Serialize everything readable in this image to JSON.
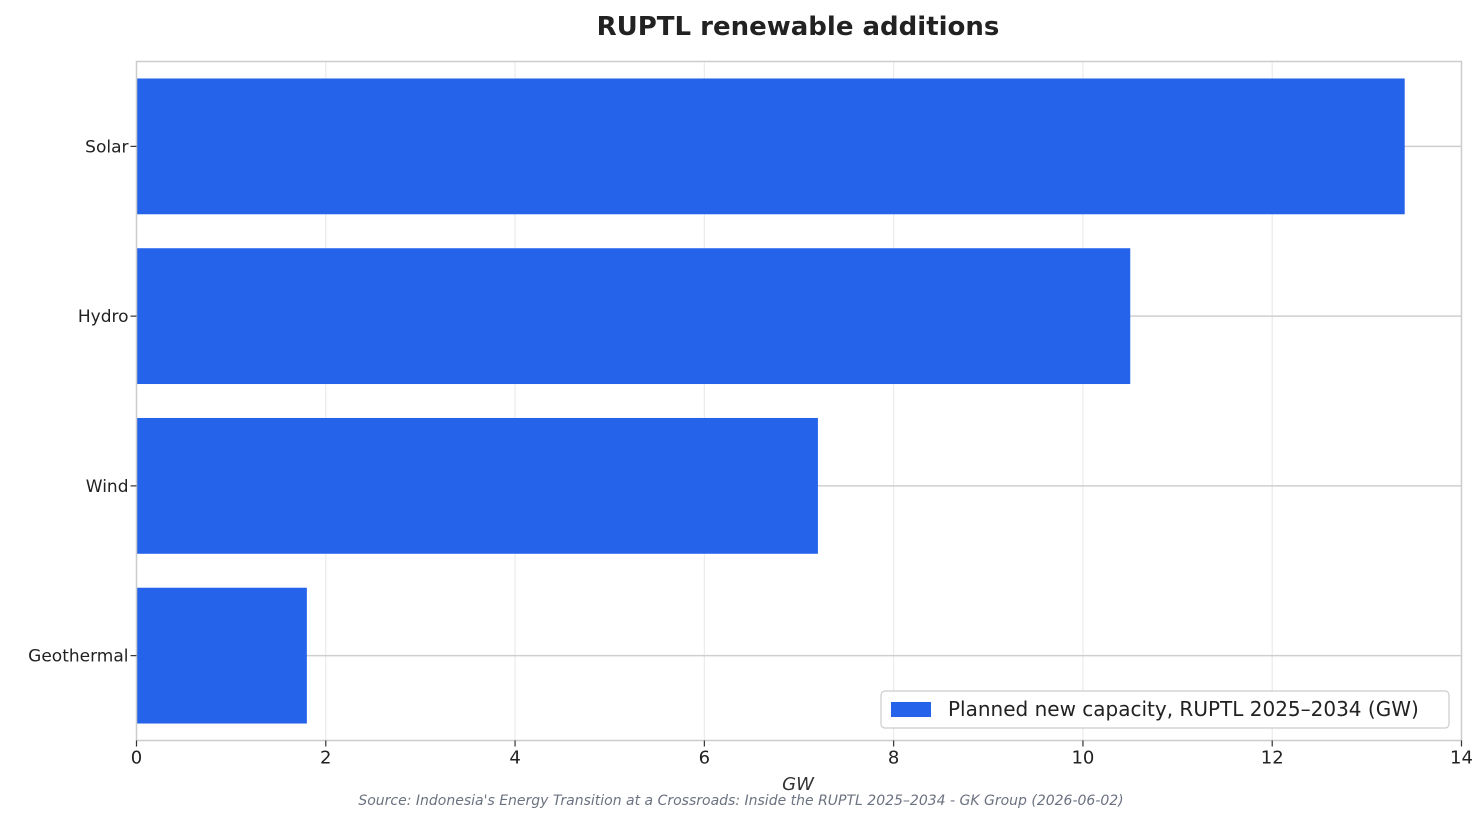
{
  "chart_data": {
    "type": "bar",
    "orientation": "horizontal",
    "title": "RUPTL renewable additions",
    "xlabel": "GW",
    "ylabel": "",
    "categories": [
      "Solar",
      "Hydro",
      "Wind",
      "Geothermal"
    ],
    "series": [
      {
        "name": "Planned new capacity, RUPTL 2025–2034 (GW)",
        "values": [
          13.4,
          10.5,
          7.2,
          1.8
        ],
        "color": "#2563eb"
      }
    ],
    "xlim": [
      0,
      14
    ],
    "xticks": [
      "0",
      "2",
      "4",
      "6",
      "8",
      "10",
      "12",
      "14"
    ],
    "grid": true,
    "legend_position": "bottom-right"
  },
  "source": "Source: Indonesia's Energy Transition at a Crossroads: Inside the RUPTL 2025–2034 - GK Group (2026-06-02)"
}
